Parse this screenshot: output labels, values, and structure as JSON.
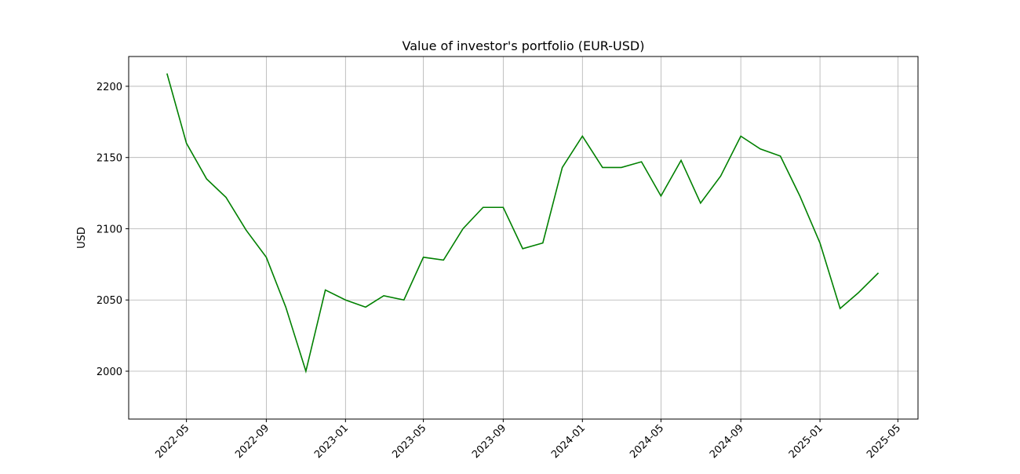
{
  "chart_data": {
    "type": "line",
    "title": "Value of investor's portfolio (EUR-USD)",
    "y_label": "USD",
    "x": [
      "2022-04",
      "2022-05",
      "2022-06",
      "2022-07",
      "2022-08",
      "2022-09",
      "2022-10",
      "2022-11",
      "2022-12",
      "2023-01",
      "2023-02",
      "2023-03",
      "2023-04",
      "2023-05",
      "2023-06",
      "2023-07",
      "2023-08",
      "2023-09",
      "2023-10",
      "2023-11",
      "2023-12",
      "2024-01",
      "2024-02",
      "2024-03",
      "2024-04",
      "2024-05",
      "2024-06",
      "2024-07",
      "2024-08",
      "2024-09",
      "2024-10",
      "2024-11",
      "2024-12",
      "2025-01",
      "2025-02",
      "2025-03",
      "2025-04"
    ],
    "series": [
      {
        "name": "Value",
        "color": "#008000",
        "values": [
          2209,
          2160,
          2135,
          2122,
          2099,
          2080,
          2045,
          2000,
          2057,
          2050,
          2045,
          2053,
          2050,
          2080,
          2078,
          2100,
          2115,
          2115,
          2086,
          2090,
          2143,
          2165,
          2143,
          2143,
          2147,
          2123,
          2148,
          2118,
          2137,
          2165,
          2156,
          2151,
          2123,
          2090,
          2044,
          2055,
          2069
        ]
      }
    ],
    "xlim": [
      "2022-02",
      "2025-06"
    ],
    "xticks": [
      "2022-05",
      "2022-09",
      "2023-01",
      "2023-05",
      "2023-09",
      "2024-01",
      "2024-05",
      "2024-09",
      "2025-01",
      "2025-05"
    ],
    "ylim": [
      1966.4,
      2220.9
    ],
    "yticks": [
      2000,
      2050,
      2100,
      2150,
      2200
    ],
    "grid": true
  }
}
